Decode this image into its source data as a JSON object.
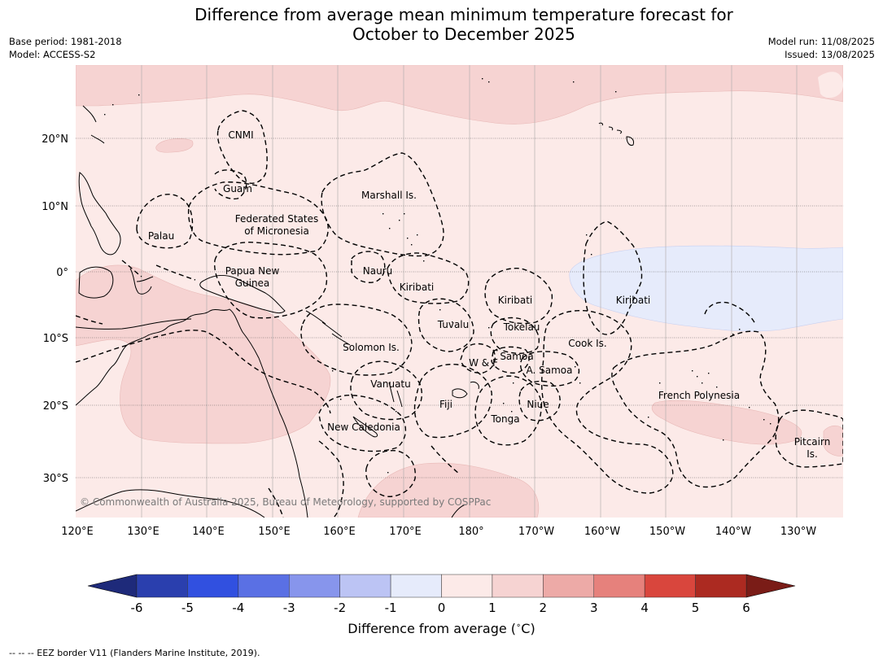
{
  "title_line1": "Difference from average mean minimum temperature forecast for",
  "title_line2": "October to December 2025",
  "base_period": "Base period: 1981-2018",
  "model": "Model: ACCESS-S2",
  "model_run": "Model run: 11/08/2025",
  "issued": "Issued: 13/08/2025",
  "lat_labels": [
    "20°N",
    "10°N",
    "0°",
    "10°S",
    "20°S",
    "30°S"
  ],
  "lon_labels": [
    "120°E",
    "130°E",
    "140°E",
    "150°E",
    "160°E",
    "170°E",
    "180°",
    "170°W",
    "160°W",
    "150°W",
    "140°W",
    "130°W"
  ],
  "places": {
    "cnmi": "CNMI",
    "guam": "Guam",
    "marshall": "Marshall Is.",
    "fsm1": "Federated States",
    "fsm2": "of Micronesia",
    "palau": "Palau",
    "png1": "Papua New",
    "png2": "Guinea",
    "nauru": "Nauru",
    "kiribati_w": "Kiribati",
    "kiribati_c": "Kiribati",
    "kiribati_e": "Kiribati",
    "tuvalu": "Tuvalu",
    "tokelau": "Tokelau",
    "solomon": "Solomon Is.",
    "wf": "W & F",
    "samoa": "Samoa",
    "asamoa": "A. Samoa",
    "cook": "Cook Is.",
    "vanuatu": "Vanuatu",
    "fiji": "Fiji",
    "niue": "Niue",
    "tonga": "Tonga",
    "newcal": "New Caledonia",
    "fpoly": "French Polynesia",
    "pitcairn1": "Pitcairn",
    "pitcairn2": "Is."
  },
  "copyright": "© Commonwealth of Australia 2025, Bureau of Meteorology, supported by COSPPac",
  "colorbar": {
    "ticks": [
      "-6",
      "-5",
      "-4",
      "-3",
      "-2",
      "-1",
      "0",
      "1",
      "2",
      "3",
      "4",
      "5",
      "6"
    ],
    "colors": [
      "#2a3fae",
      "#3150e0",
      "#5a70e4",
      "#8795ec",
      "#bcc4f4",
      "#e6ebfb",
      "#fceae8",
      "#f6d3d2",
      "#edaaa7",
      "#e6817c",
      "#d9463d",
      "#ac2a21"
    ],
    "under_color": "#1e2a7a",
    "over_color": "#7a1c17",
    "label": "Difference from average ($^\\circ$C)"
  },
  "colors": {
    "anom_0_1": "#fceae8",
    "anom_1_2": "#f6d3d2",
    "anom_m1_0": "#e6ebfb"
  },
  "footer": "-- -- -- EEZ border V11 (Flanders Marine Institute, 2019)."
}
